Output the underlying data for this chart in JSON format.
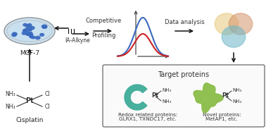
{
  "bg_color": "#ffffff",
  "cell_dish_color": "#c8e0f0",
  "cell_dish_rim": "#aaaaaa",
  "cell_dots_color": "#3a6abf",
  "arrow_color": "#111111",
  "curve_blue": "#3a6abf",
  "curve_red": "#cc2222",
  "venn_col1": "#e8c87a",
  "venn_col2": "#d4956a",
  "venn_col3": "#6ab5c8",
  "protein1_color": "#3aaa96",
  "protein2_color": "#88bb44",
  "label_mcf7": "MCF-7",
  "label_ia": "IA-Alkyne",
  "label_comp": "Competitive",
  "label_prof": "Profiling",
  "label_data": "Data analysis",
  "label_cisplatin": "Cisplatin",
  "label_target": "Target proteins",
  "label_redox": "Redox related proteins:",
  "label_redox2": "GLRX1, TXNDC17, etc.",
  "label_novel": "Novel proteins:",
  "label_novel2": "MetAP1, etc."
}
